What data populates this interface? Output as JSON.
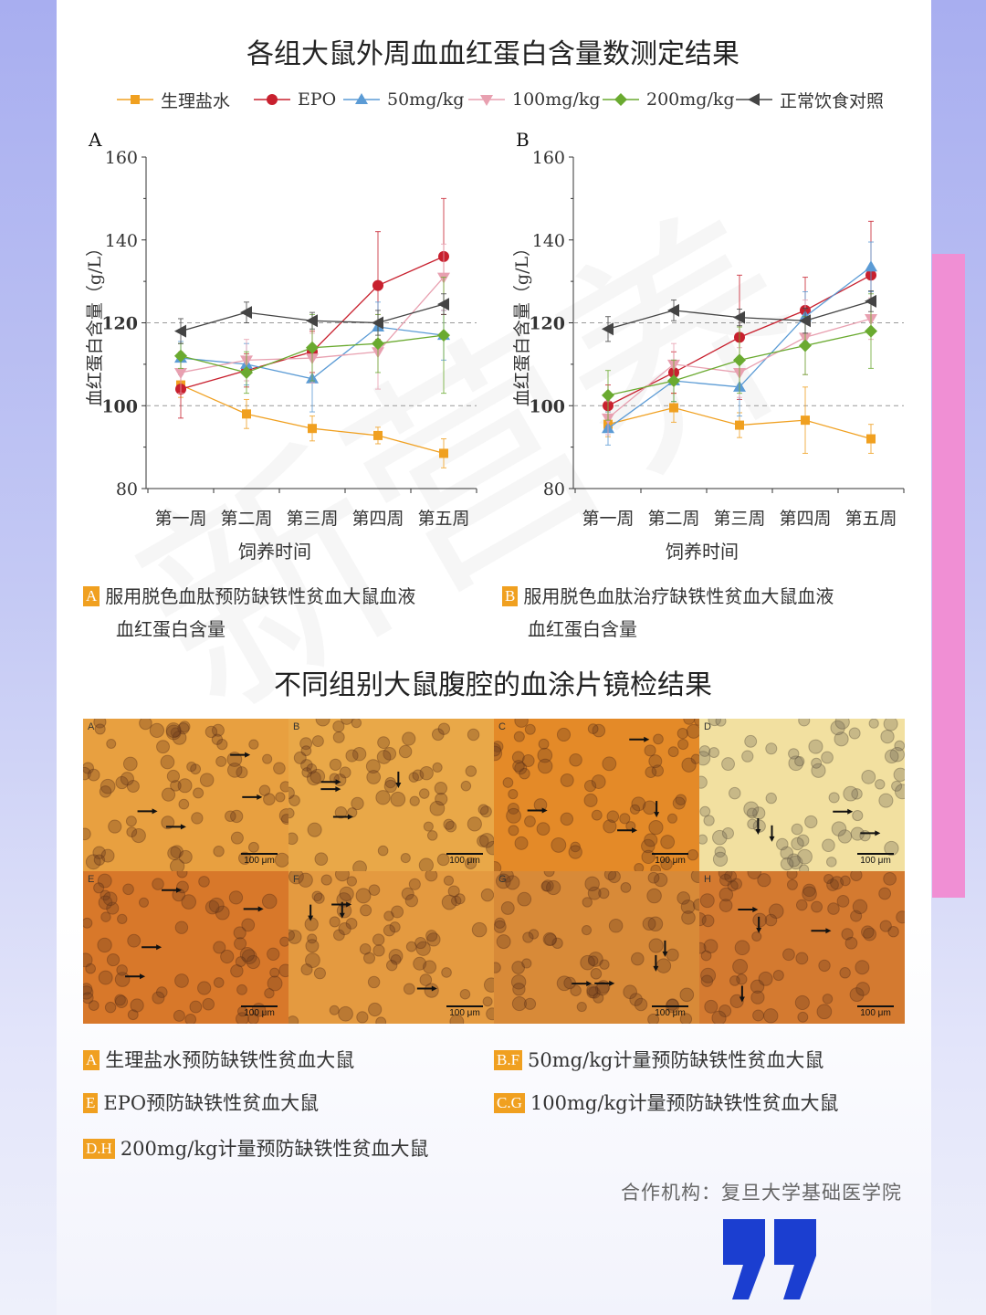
{
  "title": "各组大鼠外周血血红蛋白含量数测定结果",
  "legend": [
    {
      "label": "生理盐水",
      "color": "#f0a020",
      "marker": "square"
    },
    {
      "label": "EPO",
      "color": "#c8202e",
      "marker": "circle"
    },
    {
      "label": "50mg/kg",
      "color": "#5b9bd5",
      "marker": "triangle-up"
    },
    {
      "label": "100mg/kg",
      "color": "#e8a0b0",
      "marker": "triangle-down"
    },
    {
      "label": "200mg/kg",
      "color": "#6aaa30",
      "marker": "diamond"
    },
    {
      "label": "正常饮食对照",
      "color": "#444444",
      "marker": "triangle-left"
    }
  ],
  "chart_data": [
    {
      "type": "line",
      "panel_label": "A",
      "xlabel": "饲养时间",
      "ylabel": "血红蛋白含量（g/L）",
      "categories": [
        "第一周",
        "第二周",
        "第三周",
        "第四周",
        "第五周"
      ],
      "ylim": [
        80,
        160
      ],
      "yticks": [
        80,
        100,
        120,
        140,
        160
      ],
      "reference_lines": [
        100,
        120
      ],
      "series": [
        {
          "name": "生理盐水",
          "values": [
            105,
            98,
            94.5,
            92.8,
            88.5
          ],
          "errors": [
            3,
            3.5,
            3,
            2,
            3.5
          ]
        },
        {
          "name": "EPO",
          "values": [
            104,
            108.5,
            113,
            129,
            136
          ],
          "errors": [
            7,
            4,
            5,
            13,
            14
          ]
        },
        {
          "name": "50mg/kg",
          "values": [
            111.5,
            110,
            106.5,
            119,
            117
          ],
          "errors": [
            4,
            5,
            8,
            6,
            6
          ]
        },
        {
          "name": "100mg/kg",
          "values": [
            108,
            111,
            111.5,
            113,
            131
          ],
          "errors": [
            5,
            5,
            6,
            9,
            8
          ]
        },
        {
          "name": "200mg/kg",
          "values": [
            112,
            108,
            114,
            115,
            117
          ],
          "errors": [
            3,
            5,
            8,
            7,
            14
          ]
        },
        {
          "name": "正常饮食对照",
          "values": [
            118,
            122.5,
            120.5,
            120,
            124.5
          ],
          "errors": [
            3,
            2.5,
            2,
            3,
            2.5
          ]
        }
      ]
    },
    {
      "type": "line",
      "panel_label": "B",
      "xlabel": "饲养时间",
      "ylabel": "血红蛋白含量（g/L）",
      "categories": [
        "第一周",
        "第二周",
        "第三周",
        "第四周",
        "第五周"
      ],
      "ylim": [
        80,
        160
      ],
      "yticks": [
        80,
        100,
        120,
        140,
        160
      ],
      "reference_lines": [
        100,
        120
      ],
      "series": [
        {
          "name": "生理盐水",
          "values": [
            95.5,
            99.5,
            95.3,
            96.5,
            92
          ],
          "errors": [
            3,
            3.5,
            3,
            8,
            3.5
          ]
        },
        {
          "name": "EPO",
          "values": [
            100,
            108,
            116.5,
            123,
            131.5
          ],
          "errors": [
            5,
            5,
            15,
            8,
            13
          ]
        },
        {
          "name": "50mg/kg",
          "values": [
            94.5,
            106,
            104.5,
            121.5,
            133.5
          ],
          "errors": [
            4,
            5,
            7,
            6,
            6
          ]
        },
        {
          "name": "100mg/kg",
          "values": [
            97,
            110,
            108,
            116.5,
            121
          ],
          "errors": [
            4,
            5,
            6,
            9,
            5
          ]
        },
        {
          "name": "200mg/kg",
          "values": [
            102.5,
            106,
            111,
            114.5,
            118
          ],
          "errors": [
            6,
            5,
            8,
            7,
            9
          ]
        },
        {
          "name": "正常饮食对照",
          "values": [
            118.5,
            123,
            121.3,
            120.5,
            125.2
          ],
          "errors": [
            3,
            2.5,
            2,
            3,
            2.5
          ]
        }
      ]
    }
  ],
  "captions": [
    {
      "badge": "A",
      "line1": "服用脱色血肽预防缺铁性贫血大鼠血液",
      "line2": "血红蛋白含量"
    },
    {
      "badge": "B",
      "line1": "服用脱色血肽治疗缺铁性贫血大鼠血液",
      "line2": "血红蛋白含量"
    }
  ],
  "smear_title": "不同组别大鼠腹腔的血涂片镜检结果",
  "smear_panels": [
    {
      "label": "A",
      "bg": "#e8a040",
      "scale": "100 μm"
    },
    {
      "label": "B",
      "bg": "#e9a848",
      "scale": "100 μm"
    },
    {
      "label": "C",
      "bg": "#e48a28",
      "scale": "100 μm"
    },
    {
      "label": "D",
      "bg": "#f2e0a0",
      "scale": "100 μm"
    },
    {
      "label": "E",
      "bg": "#d8782a",
      "scale": "100 μm"
    },
    {
      "label": "F",
      "bg": "#e49a40",
      "scale": "100 μm"
    },
    {
      "label": "G",
      "bg": "#d88a38",
      "scale": "100 μm"
    },
    {
      "label": "H",
      "bg": "#d47a30",
      "scale": "100 μm"
    }
  ],
  "smear_legend": [
    {
      "badge": "A",
      "text": "生理盐水预防缺铁性贫血大鼠"
    },
    {
      "badge": "B.F",
      "text": "50mg/kg计量预防缺铁性贫血大鼠"
    },
    {
      "badge": "E",
      "text": "EPO预防缺铁性贫血大鼠"
    },
    {
      "badge": "C.G",
      "text": "100mg/kg计量预防缺铁性贫血大鼠"
    },
    {
      "badge": "D.H",
      "text": "200mg/kg计量预防缺铁性贫血大鼠"
    }
  ],
  "footer": "合作机构：复旦大学基础医学院",
  "watermark": "新营养"
}
